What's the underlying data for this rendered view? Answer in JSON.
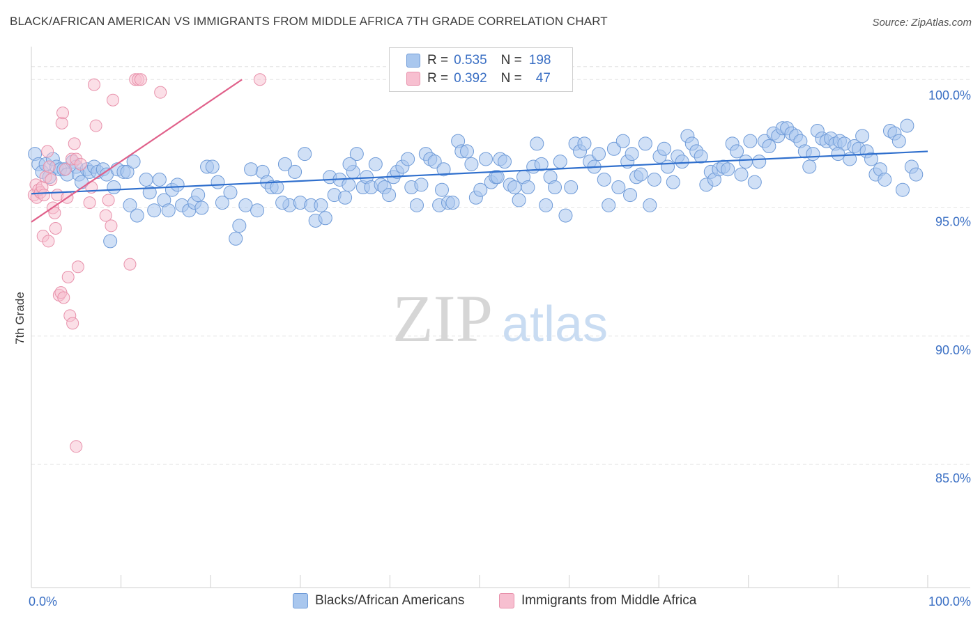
{
  "title": "BLACK/AFRICAN AMERICAN VS IMMIGRANTS FROM MIDDLE AFRICA 7TH GRADE CORRELATION CHART",
  "source": "Source: ZipAtlas.com",
  "watermark": {
    "zip": "ZIP",
    "atlas": "atlas"
  },
  "legend_box": {
    "rows": [
      {
        "r_label": "R =",
        "r_value": "0.535",
        "n_label": "N =",
        "n_value": "198"
      },
      {
        "r_label": "R =",
        "r_value": "0.392",
        "n_label": "N =",
        "n_value": "47"
      }
    ]
  },
  "bottom_legend": {
    "series0": "Blacks/African Americans",
    "series1": "Immigrants from Middle Africa"
  },
  "colors": {
    "blue_fill": "#a9c7ee",
    "blue_stroke": "#6f9bd8",
    "blue_line": "#2f6fcd",
    "pink_fill": "#f7bfd0",
    "pink_stroke": "#e891ab",
    "pink_line": "#e0608a",
    "tick_label": "#3a6fc4",
    "grid": "#e3e3e3"
  },
  "chart_data": {
    "type": "scatter",
    "title": "BLACK/AFRICAN AMERICAN VS IMMIGRANTS FROM MIDDLE AFRICA 7TH GRADE CORRELATION CHART",
    "xlabel": "",
    "ylabel": "7th Grade",
    "xlim": [
      0,
      100
    ],
    "ylim": [
      80.2,
      101.2
    ],
    "x_tick_labels": [
      "0.0%",
      "100.0%"
    ],
    "y_ticks": [
      85.0,
      90.0,
      95.0,
      100.0
    ],
    "y_tick_labels": [
      "85.0%",
      "90.0%",
      "95.0%",
      "100.0%"
    ],
    "grid": true,
    "legend_position": "top-center",
    "series": [
      {
        "name": "Blacks/African Americans",
        "R": 0.535,
        "N": 198,
        "trend": [
          [
            0,
            95.55
          ],
          [
            100,
            97.2
          ]
        ],
        "points": [
          [
            0.4,
            97.1
          ],
          [
            0.8,
            96.7
          ],
          [
            1.2,
            96.4
          ],
          [
            1.6,
            96.7
          ],
          [
            2.0,
            96.2
          ],
          [
            2.4,
            96.9
          ],
          [
            2.8,
            96.6
          ],
          [
            3.2,
            96.5
          ],
          [
            3.6,
            96.5
          ],
          [
            4.0,
            96.3
          ],
          [
            4.6,
            96.8
          ],
          [
            5.0,
            96.6
          ],
          [
            5.3,
            96.3
          ],
          [
            5.6,
            96.0
          ],
          [
            6.2,
            96.5
          ],
          [
            6.5,
            96.4
          ],
          [
            7.0,
            96.6
          ],
          [
            7.4,
            96.4
          ],
          [
            8.0,
            96.5
          ],
          [
            8.4,
            96.3
          ],
          [
            8.8,
            93.7
          ],
          [
            9.2,
            95.8
          ],
          [
            9.6,
            96.5
          ],
          [
            10.3,
            96.4
          ],
          [
            10.7,
            96.4
          ],
          [
            11.0,
            95.1
          ],
          [
            11.4,
            96.8
          ],
          [
            11.8,
            94.7
          ],
          [
            12.8,
            96.1
          ],
          [
            13.2,
            95.6
          ],
          [
            13.7,
            94.9
          ],
          [
            14.3,
            96.1
          ],
          [
            14.8,
            95.3
          ],
          [
            15.3,
            94.9
          ],
          [
            15.7,
            95.7
          ],
          [
            16.3,
            95.9
          ],
          [
            16.8,
            95.1
          ],
          [
            17.6,
            94.9
          ],
          [
            18.2,
            95.2
          ],
          [
            18.6,
            95.5
          ],
          [
            19.0,
            95.0
          ],
          [
            19.6,
            96.6
          ],
          [
            20.2,
            96.6
          ],
          [
            20.8,
            96.0
          ],
          [
            21.3,
            95.2
          ],
          [
            22.2,
            95.6
          ],
          [
            22.8,
            93.8
          ],
          [
            23.2,
            94.3
          ],
          [
            23.9,
            95.1
          ],
          [
            24.5,
            96.5
          ],
          [
            25.2,
            94.9
          ],
          [
            25.8,
            96.4
          ],
          [
            26.3,
            96.0
          ],
          [
            26.8,
            95.8
          ],
          [
            27.4,
            95.8
          ],
          [
            28.3,
            96.7
          ],
          [
            28.8,
            95.1
          ],
          [
            29.4,
            96.4
          ],
          [
            30.0,
            95.2
          ],
          [
            30.5,
            97.1
          ],
          [
            31.2,
            95.1
          ],
          [
            31.7,
            94.5
          ],
          [
            32.3,
            95.1
          ],
          [
            32.8,
            94.6
          ],
          [
            33.3,
            96.2
          ],
          [
            33.8,
            95.5
          ],
          [
            34.4,
            96.1
          ],
          [
            35.0,
            95.4
          ],
          [
            35.4,
            95.9
          ],
          [
            35.9,
            96.4
          ],
          [
            36.3,
            97.1
          ],
          [
            37.0,
            95.8
          ],
          [
            37.4,
            96.2
          ],
          [
            37.9,
            95.8
          ],
          [
            38.4,
            96.7
          ],
          [
            39.0,
            95.9
          ],
          [
            39.4,
            95.8
          ],
          [
            39.9,
            95.5
          ],
          [
            40.4,
            96.2
          ],
          [
            40.8,
            96.4
          ],
          [
            41.4,
            96.6
          ],
          [
            42.0,
            96.9
          ],
          [
            42.4,
            95.8
          ],
          [
            43.0,
            95.1
          ],
          [
            43.5,
            95.9
          ],
          [
            44.0,
            97.1
          ],
          [
            44.5,
            96.9
          ],
          [
            45.0,
            96.8
          ],
          [
            45.5,
            95.1
          ],
          [
            46.0,
            96.5
          ],
          [
            46.5,
            95.2
          ],
          [
            47.0,
            95.2
          ],
          [
            47.6,
            97.6
          ],
          [
            48.0,
            97.2
          ],
          [
            48.6,
            97.2
          ],
          [
            49.1,
            96.7
          ],
          [
            49.6,
            95.4
          ],
          [
            50.1,
            95.7
          ],
          [
            50.7,
            96.9
          ],
          [
            51.3,
            96.0
          ],
          [
            51.8,
            96.2
          ],
          [
            52.3,
            96.9
          ],
          [
            52.8,
            96.8
          ],
          [
            53.4,
            95.9
          ],
          [
            53.9,
            95.8
          ],
          [
            54.4,
            95.3
          ],
          [
            54.9,
            96.2
          ],
          [
            55.4,
            95.8
          ],
          [
            56.0,
            96.6
          ],
          [
            56.4,
            97.5
          ],
          [
            56.9,
            96.7
          ],
          [
            57.4,
            95.1
          ],
          [
            57.9,
            96.2
          ],
          [
            58.4,
            95.8
          ],
          [
            59.0,
            96.8
          ],
          [
            59.6,
            94.7
          ],
          [
            60.2,
            95.8
          ],
          [
            60.7,
            97.5
          ],
          [
            61.2,
            97.2
          ],
          [
            61.7,
            97.5
          ],
          [
            62.3,
            96.8
          ],
          [
            62.8,
            96.6
          ],
          [
            63.3,
            97.1
          ],
          [
            63.9,
            96.1
          ],
          [
            64.4,
            95.1
          ],
          [
            65.0,
            97.3
          ],
          [
            65.5,
            95.8
          ],
          [
            66.0,
            97.6
          ],
          [
            66.5,
            96.8
          ],
          [
            67.0,
            97.1
          ],
          [
            67.5,
            96.2
          ],
          [
            68.0,
            96.3
          ],
          [
            68.5,
            97.5
          ],
          [
            69.0,
            95.1
          ],
          [
            69.5,
            96.1
          ],
          [
            70.1,
            97.0
          ],
          [
            70.6,
            97.3
          ],
          [
            71.0,
            96.6
          ],
          [
            71.6,
            96.0
          ],
          [
            72.1,
            97.0
          ],
          [
            72.6,
            96.8
          ],
          [
            73.2,
            97.8
          ],
          [
            73.7,
            97.5
          ],
          [
            74.2,
            97.2
          ],
          [
            74.7,
            97.0
          ],
          [
            75.3,
            95.9
          ],
          [
            75.8,
            96.4
          ],
          [
            76.2,
            96.1
          ],
          [
            76.7,
            96.5
          ],
          [
            77.2,
            96.6
          ],
          [
            77.7,
            96.5
          ],
          [
            78.2,
            97.5
          ],
          [
            78.7,
            97.2
          ],
          [
            79.2,
            96.3
          ],
          [
            79.7,
            96.8
          ],
          [
            80.2,
            97.6
          ],
          [
            80.7,
            96.0
          ],
          [
            81.2,
            96.8
          ],
          [
            81.8,
            97.6
          ],
          [
            82.3,
            97.4
          ],
          [
            82.8,
            97.9
          ],
          [
            83.3,
            97.8
          ],
          [
            83.8,
            98.1
          ],
          [
            84.3,
            98.1
          ],
          [
            84.8,
            97.9
          ],
          [
            85.3,
            97.8
          ],
          [
            85.8,
            97.6
          ],
          [
            86.3,
            97.2
          ],
          [
            86.8,
            96.6
          ],
          [
            87.2,
            97.1
          ],
          [
            87.7,
            98.0
          ],
          [
            88.2,
            97.7
          ],
          [
            88.7,
            97.6
          ],
          [
            89.2,
            97.7
          ],
          [
            89.7,
            97.5
          ],
          [
            90.2,
            97.6
          ],
          [
            90.7,
            97.5
          ],
          [
            91.3,
            96.9
          ],
          [
            91.8,
            97.4
          ],
          [
            92.3,
            97.3
          ],
          [
            92.7,
            97.8
          ],
          [
            93.2,
            97.2
          ],
          [
            93.7,
            96.9
          ],
          [
            94.2,
            96.3
          ],
          [
            94.7,
            96.5
          ],
          [
            95.2,
            96.1
          ],
          [
            95.8,
            98.0
          ],
          [
            96.3,
            97.9
          ],
          [
            96.8,
            97.6
          ],
          [
            97.2,
            95.7
          ],
          [
            97.7,
            98.2
          ],
          [
            98.2,
            96.6
          ],
          [
            98.7,
            96.3
          ],
          [
            28.0,
            95.2
          ],
          [
            35.5,
            96.7
          ],
          [
            45.8,
            95.7
          ],
          [
            52.0,
            96.2
          ],
          [
            66.8,
            95.5
          ],
          [
            90.0,
            97.1
          ]
        ]
      },
      {
        "name": "Immigrants from Middle Africa",
        "R": 0.392,
        "N": 47,
        "trend": [
          [
            0,
            94.45
          ],
          [
            23.5,
            100.0
          ]
        ],
        "points": [
          [
            0.3,
            95.5
          ],
          [
            0.5,
            95.9
          ],
          [
            0.6,
            95.4
          ],
          [
            0.8,
            95.7
          ],
          [
            1.0,
            95.6
          ],
          [
            1.2,
            95.8
          ],
          [
            1.4,
            95.5
          ],
          [
            1.6,
            96.2
          ],
          [
            1.8,
            97.2
          ],
          [
            2.0,
            96.6
          ],
          [
            1.3,
            93.9
          ],
          [
            1.9,
            93.7
          ],
          [
            2.2,
            96.1
          ],
          [
            2.4,
            95.0
          ],
          [
            2.6,
            94.8
          ],
          [
            2.7,
            94.2
          ],
          [
            2.9,
            95.5
          ],
          [
            3.1,
            91.6
          ],
          [
            3.3,
            91.7
          ],
          [
            3.4,
            98.3
          ],
          [
            3.5,
            98.7
          ],
          [
            3.6,
            91.5
          ],
          [
            3.8,
            96.5
          ],
          [
            4.0,
            95.4
          ],
          [
            4.1,
            92.3
          ],
          [
            4.3,
            90.8
          ],
          [
            4.5,
            96.9
          ],
          [
            4.6,
            90.5
          ],
          [
            4.8,
            97.5
          ],
          [
            5.0,
            96.9
          ],
          [
            5.2,
            92.7
          ],
          [
            5.5,
            96.7
          ],
          [
            5.0,
            85.7
          ],
          [
            6.5,
            95.2
          ],
          [
            6.7,
            95.8
          ],
          [
            7.0,
            99.8
          ],
          [
            7.2,
            98.2
          ],
          [
            8.3,
            94.7
          ],
          [
            8.6,
            95.3
          ],
          [
            8.9,
            94.3
          ],
          [
            9.1,
            99.2
          ],
          [
            11.0,
            92.8
          ],
          [
            11.6,
            100.0
          ],
          [
            11.9,
            100.0
          ],
          [
            12.2,
            100.0
          ],
          [
            14.4,
            99.5
          ],
          [
            25.5,
            100.0
          ]
        ]
      }
    ]
  }
}
